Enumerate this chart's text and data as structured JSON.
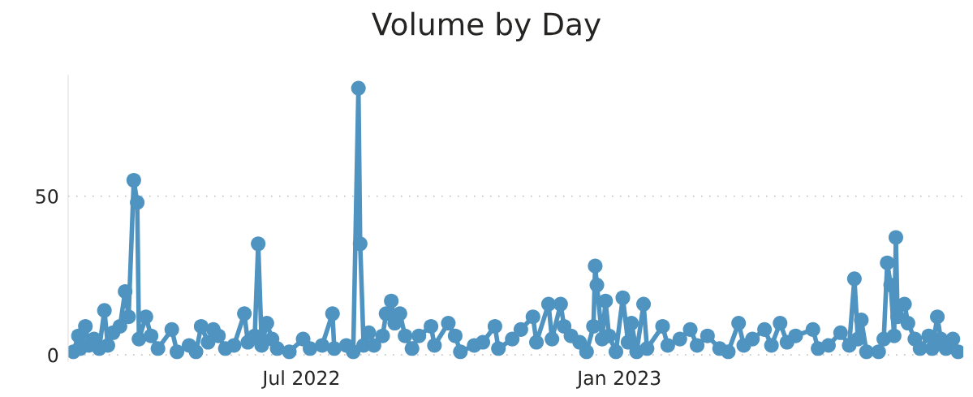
{
  "chart_data": {
    "type": "line",
    "title": "Volume by Day",
    "marker": "circle",
    "grid": "y",
    "x": [
      "2022-02-19",
      "2022-02-22",
      "2022-02-23",
      "2022-02-26",
      "2022-02-28",
      "2022-03-03",
      "2022-03-06",
      "2022-03-09",
      "2022-03-11",
      "2022-03-14",
      "2022-03-18",
      "2022-03-21",
      "2022-03-23",
      "2022-03-26",
      "2022-03-28",
      "2022-03-29",
      "2022-04-02",
      "2022-04-05",
      "2022-04-09",
      "2022-04-17",
      "2022-04-20",
      "2022-04-27",
      "2022-05-01",
      "2022-05-04",
      "2022-05-08",
      "2022-05-11",
      "2022-05-14",
      "2022-05-18",
      "2022-05-23",
      "2022-05-29",
      "2022-05-31",
      "2022-06-04",
      "2022-06-06",
      "2022-06-08",
      "2022-06-11",
      "2022-06-14",
      "2022-06-17",
      "2022-06-24",
      "2022-07-02",
      "2022-07-06",
      "2022-07-13",
      "2022-07-19",
      "2022-07-20",
      "2022-07-27",
      "2022-07-31",
      "2022-08-03",
      "2022-08-04",
      "2022-08-06",
      "2022-08-09",
      "2022-08-12",
      "2022-08-17",
      "2022-08-19",
      "2022-08-22",
      "2022-08-24",
      "2022-08-27",
      "2022-08-30",
      "2022-09-03",
      "2022-09-07",
      "2022-09-14",
      "2022-09-16",
      "2022-09-24",
      "2022-09-28",
      "2022-10-01",
      "2022-10-09",
      "2022-10-14",
      "2022-10-21",
      "2022-10-23",
      "2022-10-31",
      "2022-11-05",
      "2022-11-12",
      "2022-11-14",
      "2022-11-21",
      "2022-11-23",
      "2022-11-28",
      "2022-11-30",
      "2022-12-04",
      "2022-12-09",
      "2022-12-13",
      "2022-12-17",
      "2022-12-18",
      "2022-12-19",
      "2022-12-22",
      "2022-12-24",
      "2022-12-26",
      "2022-12-30",
      "2023-01-03",
      "2023-01-06",
      "2023-01-08",
      "2023-01-11",
      "2023-01-15",
      "2023-01-17",
      "2023-01-26",
      "2023-01-29",
      "2023-02-05",
      "2023-02-11",
      "2023-02-15",
      "2023-02-21",
      "2023-02-28",
      "2023-03-05",
      "2023-03-11",
      "2023-03-14",
      "2023-03-19",
      "2023-03-26",
      "2023-03-30",
      "2023-04-04",
      "2023-04-08",
      "2023-04-13",
      "2023-04-23",
      "2023-04-26",
      "2023-05-02",
      "2023-05-09",
      "2023-05-14",
      "2023-05-17",
      "2023-05-19",
      "2023-05-21",
      "2023-05-24",
      "2023-05-31",
      "2023-06-03",
      "2023-06-05",
      "2023-06-07",
      "2023-06-09",
      "2023-06-10",
      "2023-06-11",
      "2023-06-15",
      "2023-06-17",
      "2023-06-21",
      "2023-06-24",
      "2023-06-29",
      "2023-07-01",
      "2023-07-04",
      "2023-07-06",
      "2023-07-09",
      "2023-07-13",
      "2023-07-16"
    ],
    "series": [
      {
        "color": "#4f93c0",
        "values": [
          1,
          6,
          2,
          9,
          3,
          5,
          2,
          14,
          3,
          7,
          9,
          20,
          12,
          55,
          48,
          5,
          12,
          6,
          2,
          8,
          1,
          3,
          1,
          9,
          4,
          8,
          6,
          2,
          3,
          13,
          4,
          6,
          35,
          3,
          10,
          5,
          2,
          1,
          5,
          2,
          3,
          13,
          2,
          3,
          1,
          84,
          35,
          3,
          7,
          3,
          6,
          13,
          17,
          10,
          13,
          6,
          2,
          6,
          9,
          3,
          10,
          6,
          1,
          3,
          4,
          9,
          2,
          5,
          8,
          12,
          4,
          16,
          5,
          16,
          9,
          6,
          4,
          1,
          9,
          28,
          22,
          5,
          17,
          6,
          1,
          18,
          4,
          10,
          1,
          16,
          2,
          9,
          3,
          5,
          8,
          3,
          6,
          2,
          1,
          10,
          3,
          5,
          8,
          3,
          10,
          4,
          6,
          8,
          2,
          3,
          7,
          3,
          24,
          5,
          11,
          1,
          1,
          5,
          29,
          22,
          6,
          37,
          12,
          16,
          10,
          5,
          2,
          6,
          2,
          12,
          5,
          2,
          5,
          1
        ]
      }
    ],
    "xlim": [
      "2022-02-16",
      "2023-07-19"
    ],
    "xticks": [
      {
        "value": "2022-07-01",
        "label": "Jul 2022"
      },
      {
        "value": "2023-01-01",
        "label": "Jan 2023"
      }
    ],
    "ylim": [
      -2,
      88
    ],
    "yticks": [
      0,
      50
    ]
  }
}
